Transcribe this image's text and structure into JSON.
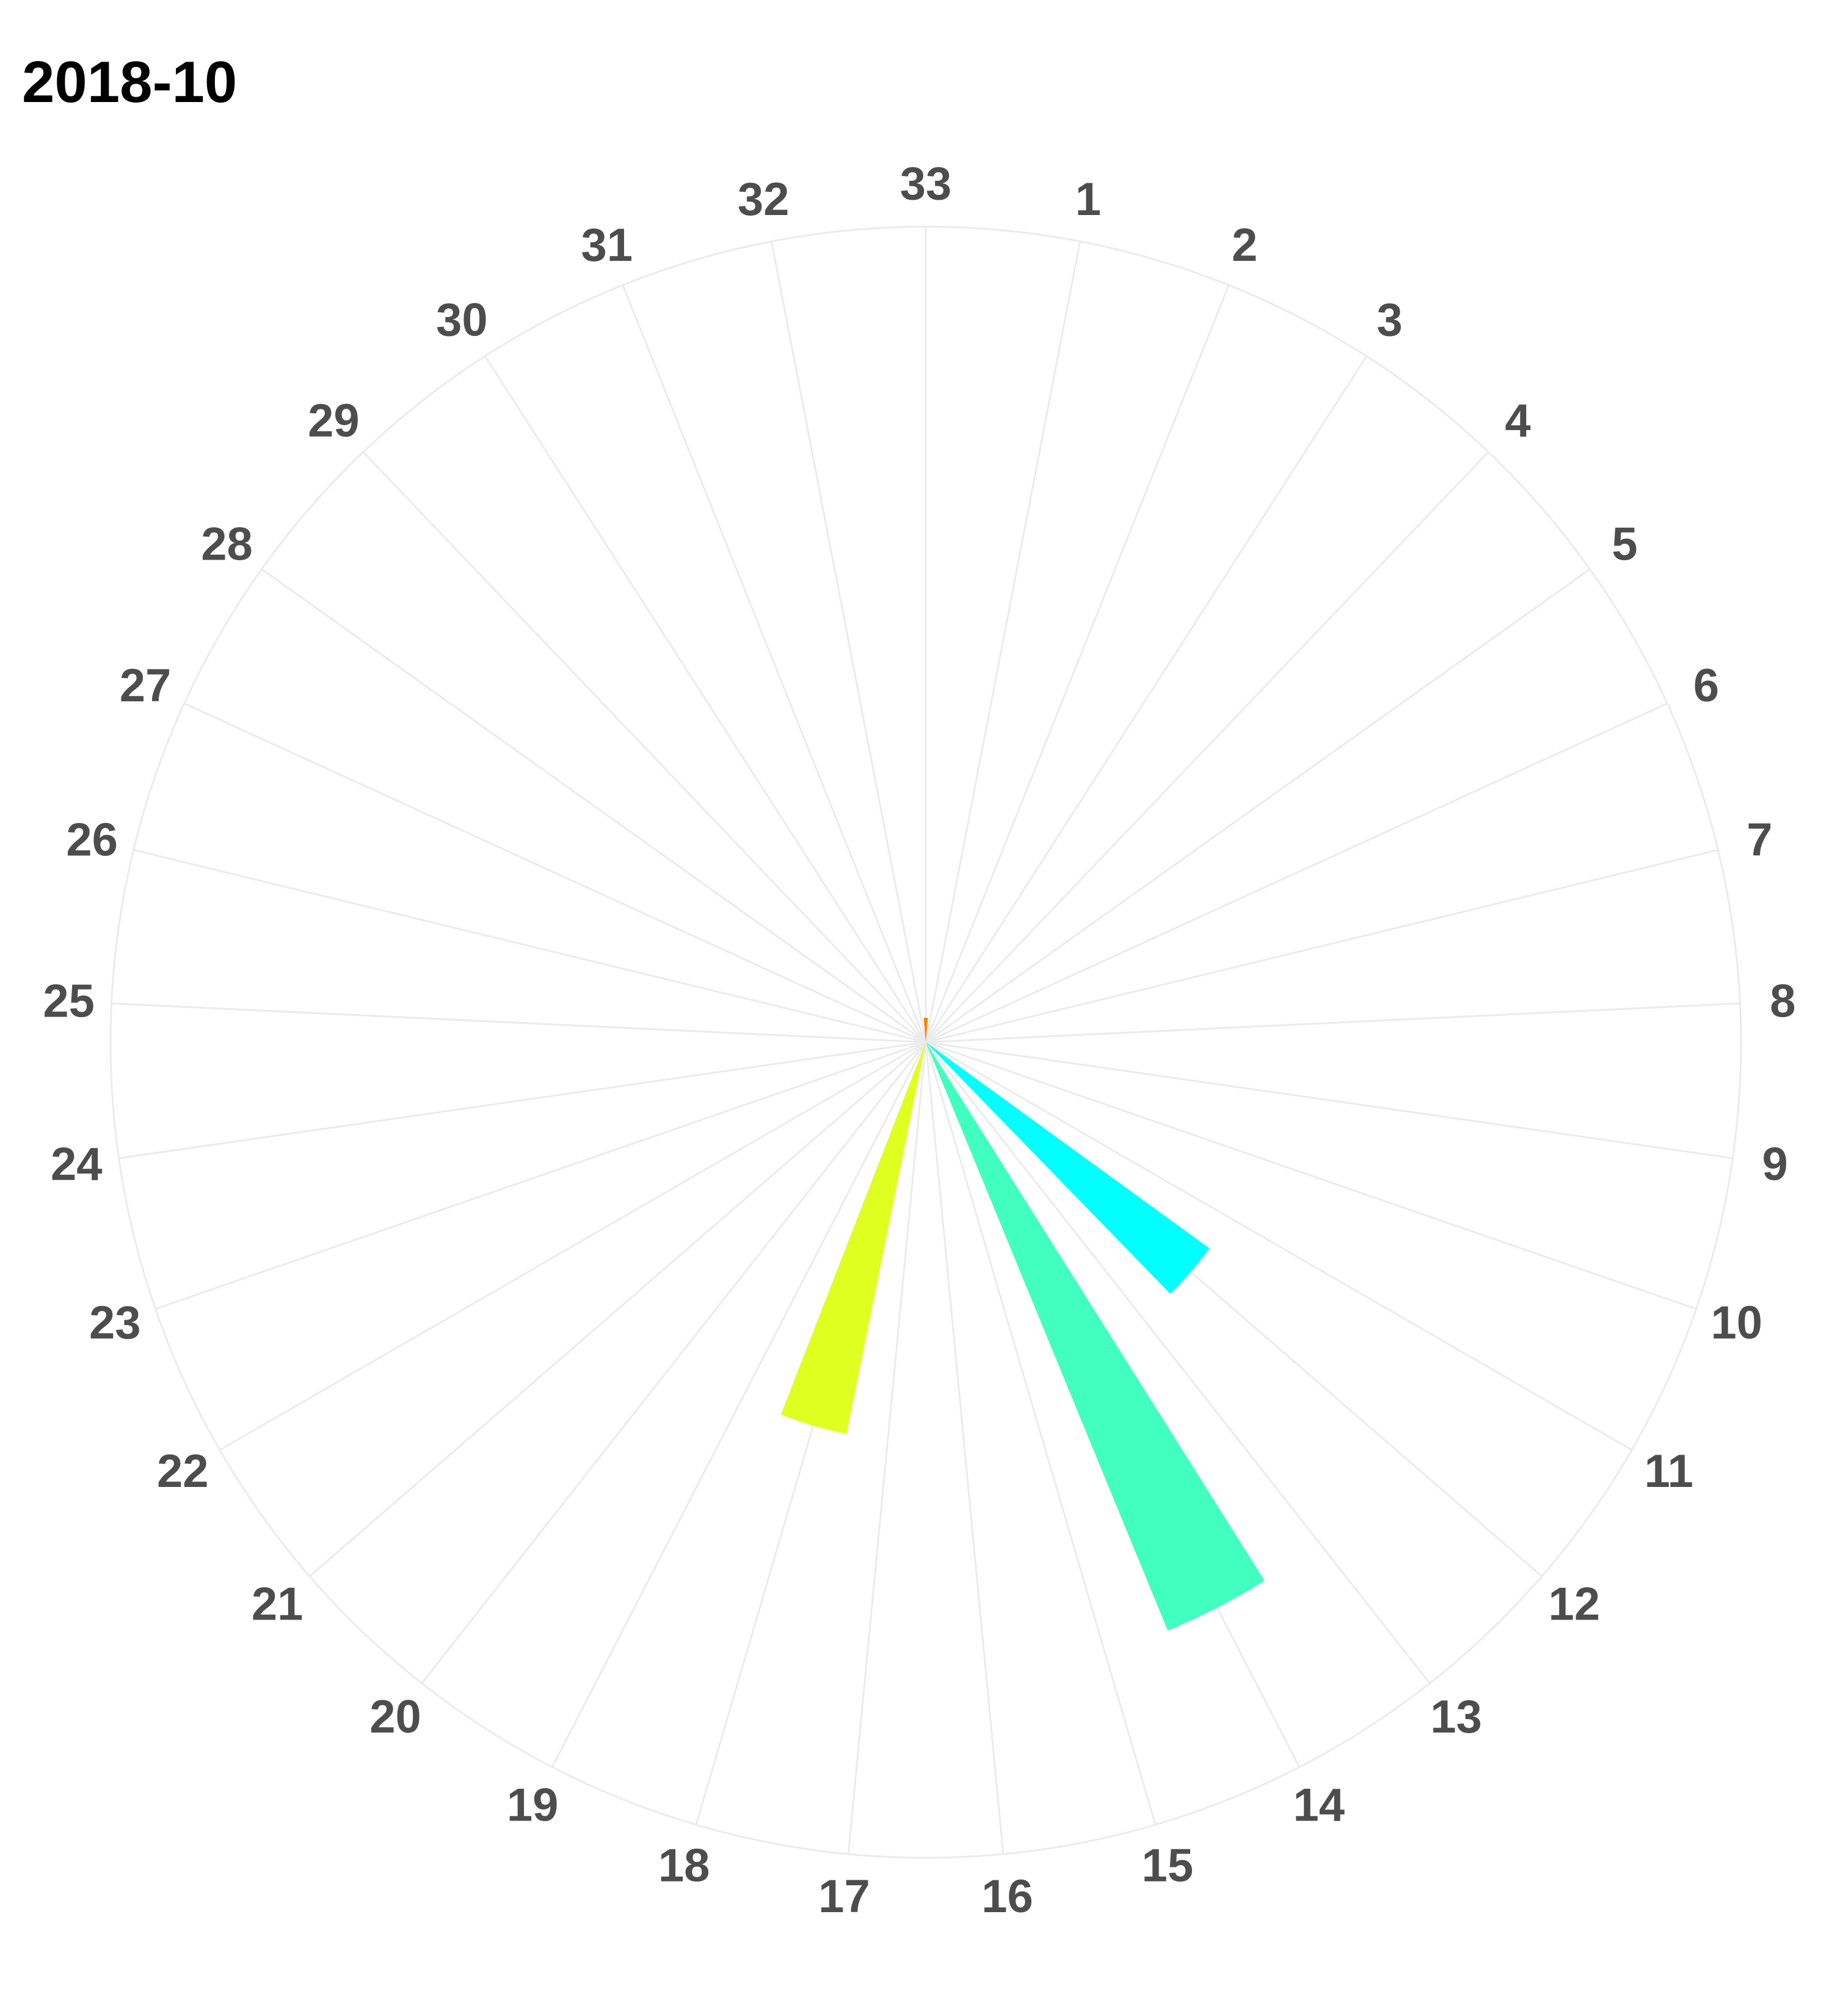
{
  "chart_data": {
    "type": "bar",
    "coordinate_system": "polar",
    "title": "2018-10",
    "xlabel": "",
    "ylabel": "",
    "categories": [
      "1",
      "2",
      "3",
      "4",
      "5",
      "6",
      "7",
      "8",
      "9",
      "10",
      "11",
      "12",
      "13",
      "14",
      "15",
      "16",
      "17",
      "18",
      "19",
      "20",
      "21",
      "22",
      "23",
      "24",
      "25",
      "26",
      "27",
      "28",
      "29",
      "30",
      "31",
      "32",
      "33"
    ],
    "values": [
      0,
      0,
      0,
      0,
      0,
      0,
      0,
      0,
      0,
      0,
      0,
      0.43,
      0,
      0.78,
      0,
      0,
      0,
      0.49,
      0,
      0,
      0,
      0,
      0,
      0,
      0,
      0,
      0,
      0,
      0,
      0,
      0,
      0,
      0.03
    ],
    "bar_colors": {
      "12": "#00ffff",
      "14": "#40ffbf",
      "18": "#dfff20",
      "33": "#ff8000"
    },
    "ylim": [
      0,
      1
    ],
    "grid": true,
    "legend": "none"
  }
}
